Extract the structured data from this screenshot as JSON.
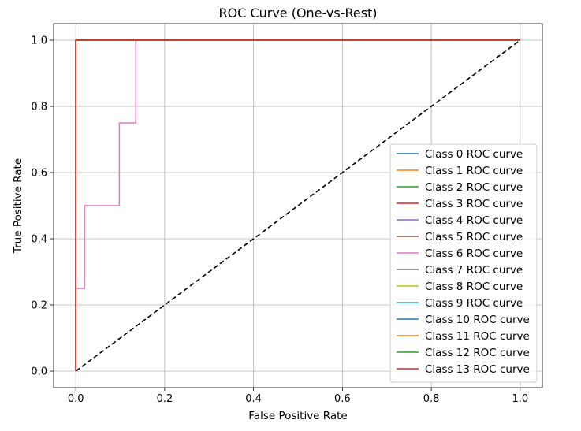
{
  "chart_data": {
    "type": "line",
    "title": "ROC Curve (One-vs-Rest)",
    "xlabel": "False Positive Rate",
    "ylabel": "True Positive Rate",
    "xlim": [
      -0.05,
      1.05
    ],
    "ylim": [
      -0.05,
      1.05
    ],
    "xticks": [
      0.0,
      0.2,
      0.4,
      0.6,
      0.8,
      1.0
    ],
    "yticks": [
      0.0,
      0.2,
      0.4,
      0.6,
      0.8,
      1.0
    ],
    "xtick_labels": [
      "0.0",
      "0.2",
      "0.4",
      "0.6",
      "0.8",
      "1.0"
    ],
    "ytick_labels": [
      "0.0",
      "0.2",
      "0.4",
      "0.6",
      "0.8",
      "1.0"
    ],
    "grid": true,
    "legend_position": "lower-right",
    "diagonal": {
      "x": [
        0,
        1
      ],
      "y": [
        0,
        1
      ],
      "style": "dashed",
      "color": "#000000"
    },
    "series": [
      {
        "name": "Class 0 ROC curve",
        "color": "#1f77b4",
        "x": [
          0,
          0,
          1
        ],
        "y": [
          0,
          1,
          1
        ]
      },
      {
        "name": "Class 1 ROC curve",
        "color": "#ff7f0e",
        "x": [
          0,
          0,
          1
        ],
        "y": [
          0,
          1,
          1
        ]
      },
      {
        "name": "Class 2 ROC curve",
        "color": "#2ca02c",
        "x": [
          0,
          0,
          1
        ],
        "y": [
          0,
          1,
          1
        ]
      },
      {
        "name": "Class 3 ROC curve",
        "color": "#d62728",
        "x": [
          0,
          0,
          1
        ],
        "y": [
          0,
          1,
          1
        ]
      },
      {
        "name": "Class 4 ROC curve",
        "color": "#9467bd",
        "x": [
          0,
          0,
          1
        ],
        "y": [
          0,
          1,
          1
        ]
      },
      {
        "name": "Class 5 ROC curve",
        "color": "#8c564b",
        "x": [
          0,
          0,
          1
        ],
        "y": [
          0,
          1,
          1
        ]
      },
      {
        "name": "Class 6 ROC curve",
        "color": "#e377c2",
        "x": [
          0,
          0,
          0.02,
          0.02,
          0.098,
          0.098,
          0.135,
          0.135,
          1
        ],
        "y": [
          0,
          0.25,
          0.25,
          0.5,
          0.5,
          0.75,
          0.75,
          1,
          1
        ]
      },
      {
        "name": "Class 7 ROC curve",
        "color": "#7f7f7f",
        "x": [
          0,
          0,
          1
        ],
        "y": [
          0,
          1,
          1
        ]
      },
      {
        "name": "Class 8 ROC curve",
        "color": "#bcbd22",
        "x": [
          0,
          0,
          1
        ],
        "y": [
          0,
          1,
          1
        ]
      },
      {
        "name": "Class 9 ROC curve",
        "color": "#17becf",
        "x": [
          0,
          0,
          1
        ],
        "y": [
          0,
          1,
          1
        ]
      },
      {
        "name": "Class 10 ROC curve",
        "color": "#1f77b4",
        "x": [
          0,
          0,
          1
        ],
        "y": [
          0,
          1,
          1
        ]
      },
      {
        "name": "Class 11 ROC curve",
        "color": "#ff7f0e",
        "x": [
          0,
          0,
          1
        ],
        "y": [
          0,
          1,
          1
        ]
      },
      {
        "name": "Class 12 ROC curve",
        "color": "#2ca02c",
        "x": [
          0,
          0,
          1
        ],
        "y": [
          0,
          1,
          1
        ]
      },
      {
        "name": "Class 13 ROC curve",
        "color": "#d62728",
        "x": [
          0,
          0,
          1
        ],
        "y": [
          0,
          1,
          1
        ]
      }
    ]
  }
}
